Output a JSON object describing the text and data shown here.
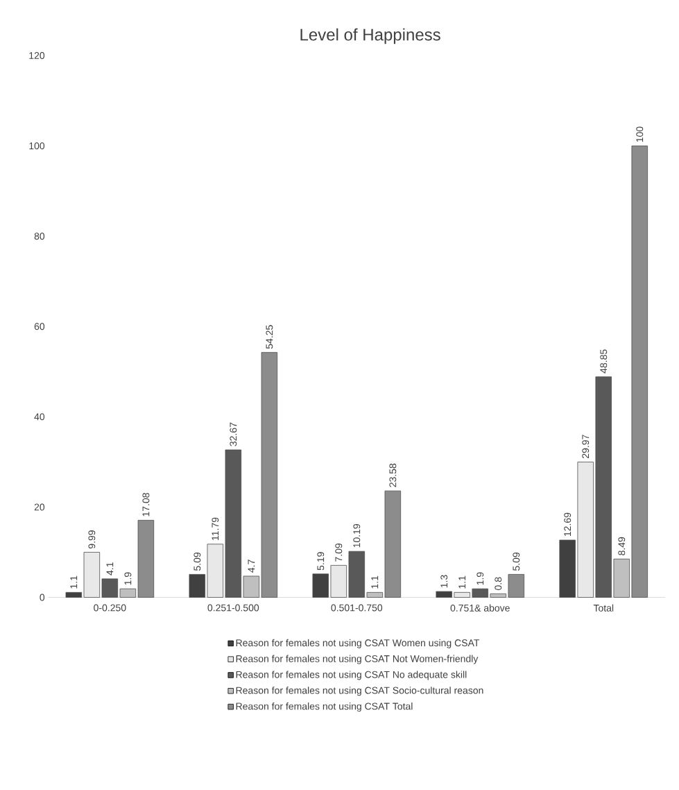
{
  "chart_data": {
    "type": "bar",
    "title": "Level of Happiness",
    "categories": [
      "0-0.250",
      "0.251-0.500",
      "0.501-0.750",
      "0.751& above",
      "Total"
    ],
    "series": [
      {
        "name": "Reason for females not using CSAT Women using CSAT",
        "color": "#404040",
        "values": [
          1.1,
          5.09,
          5.19,
          1.3,
          12.69
        ]
      },
      {
        "name": "Reason for females not using CSAT Not Women-friendly",
        "color": "#e8e8e8",
        "values": [
          9.99,
          11.79,
          7.09,
          1.1,
          29.97
        ]
      },
      {
        "name": "Reason for females not using CSAT No adequate skill",
        "color": "#595959",
        "values": [
          4.1,
          32.67,
          10.19,
          1.9,
          48.85
        ]
      },
      {
        "name": "Reason for females not using CSAT Socio-cultural reason",
        "color": "#bfbfbf",
        "values": [
          1.9,
          4.7,
          1.1,
          0.8,
          8.49
        ]
      },
      {
        "name": "Reason for females not using CSAT Total",
        "color": "#8c8c8c",
        "values": [
          17.08,
          54.25,
          23.58,
          5.09,
          100
        ]
      }
    ],
    "ylim": [
      0,
      120
    ],
    "yticks": [
      0,
      20,
      40,
      60,
      80,
      100,
      120
    ],
    "grid": false,
    "legend": "bottom",
    "data_labels": true
  }
}
